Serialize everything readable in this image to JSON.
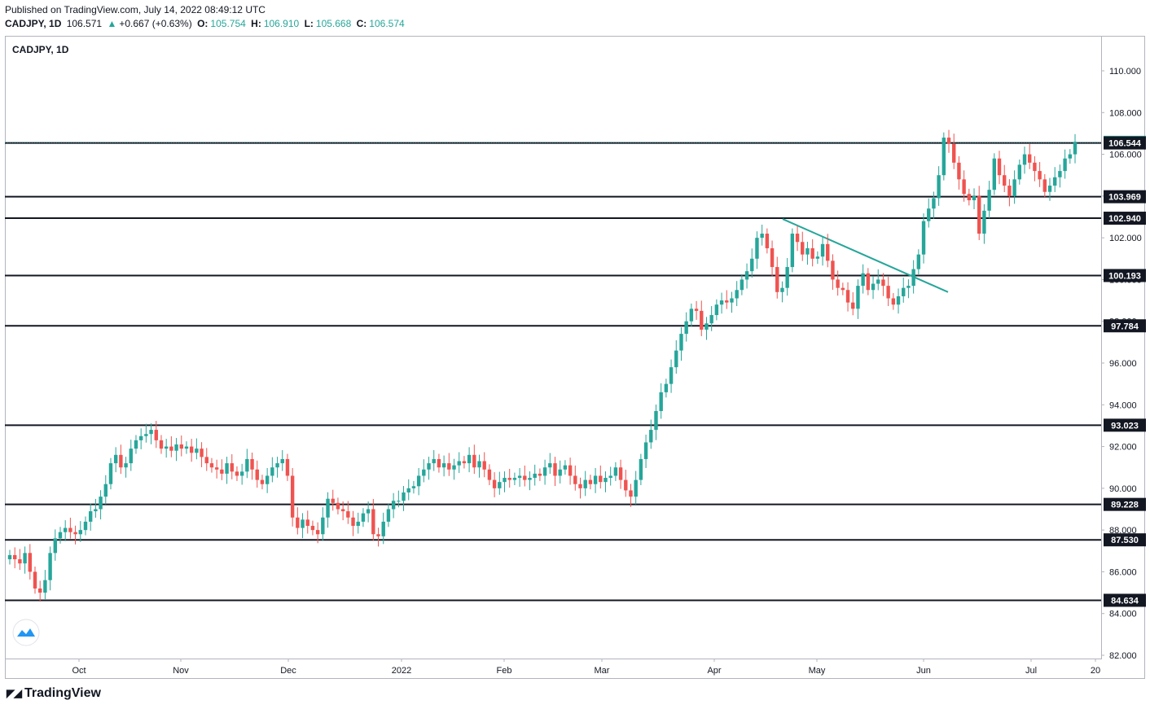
{
  "header": {
    "published": "Published on TradingView.com, July 14, 2022 08:49:12 UTC",
    "symbol": "CADJPY, 1D",
    "last": "106.571",
    "change": "+0.667 (+0.63%)",
    "open_label": "O:",
    "open": "105.754",
    "high_label": "H:",
    "high": "106.910",
    "low_label": "L:",
    "low": "105.668",
    "close_label": "C:",
    "close": "106.574"
  },
  "pane_title": "CADJPY, 1D",
  "footer_brand": "TradingView",
  "colors": {
    "up": "#26a69a",
    "down": "#ef5350",
    "line": "#131722",
    "trend": "#26a69a"
  },
  "chart_data": {
    "type": "candlestick",
    "symbol": "CADJPY",
    "timeframe": "1D",
    "ylim": [
      82,
      111
    ],
    "y_ticks": [
      "82.000",
      "84.000",
      "86.000",
      "88.000",
      "90.000",
      "92.000",
      "94.000",
      "96.000",
      "98.000",
      "100.000",
      "102.000",
      "104.000",
      "106.000",
      "108.000",
      "110.000"
    ],
    "x_ticks": [
      "Oct",
      "Nov",
      "Dec",
      "2022",
      "Feb",
      "Mar",
      "Apr",
      "May",
      "Jun",
      "Jul",
      "20"
    ],
    "current_price": "106.574",
    "levels": [
      "106.544",
      "103.969",
      "102.940",
      "100.193",
      "97.784",
      "93.023",
      "89.228",
      "87.530",
      "84.634"
    ],
    "trendline": {
      "from": [
        "2022-04-20",
        102.9
      ],
      "to": [
        "2022-06-10",
        99.4
      ]
    },
    "series_close_path": [
      86.8,
      86.6,
      86.4,
      86.9,
      86.0,
      85.2,
      85.0,
      85.6,
      86.9,
      87.6,
      87.9,
      88.1,
      87.9,
      87.8,
      88.0,
      88.4,
      88.9,
      89.0,
      89.6,
      90.2,
      91.2,
      91.6,
      91.0,
      91.2,
      91.9,
      92.3,
      92.5,
      92.6,
      92.8,
      92.3,
      91.9,
      92.0,
      91.8,
      92.1,
      91.9,
      92.0,
      91.7,
      91.9,
      91.5,
      91.2,
      91.0,
      90.9,
      90.7,
      91.2,
      90.8,
      90.6,
      90.8,
      91.4,
      90.9,
      90.4,
      90.2,
      90.6,
      91.0,
      91.2,
      91.4,
      90.6,
      88.6,
      88.1,
      88.5,
      88.2,
      88.0,
      87.8,
      88.6,
      89.5,
      89.3,
      89.0,
      88.9,
      88.6,
      88.2,
      88.4,
      88.8,
      89.0,
      87.8,
      87.7,
      88.4,
      89.0,
      89.4,
      89.4,
      89.8,
      90.0,
      90.1,
      90.6,
      90.9,
      91.2,
      91.4,
      91.0,
      91.2,
      90.9,
      91.1,
      91.3,
      91.2,
      91.6,
      91.0,
      91.3,
      90.9,
      90.4,
      90.0,
      90.3,
      90.5,
      90.4,
      90.5,
      90.6,
      90.4,
      90.5,
      90.7,
      90.6,
      91.0,
      91.2,
      90.6,
      90.9,
      91.1,
      90.6,
      90.2,
      90.0,
      90.4,
      90.2,
      90.6,
      90.3,
      90.5,
      90.6,
      91.0,
      90.4,
      89.9,
      89.6,
      90.4,
      91.4,
      92.2,
      92.8,
      93.7,
      94.6,
      95.0,
      95.8,
      96.6,
      97.4,
      98.0,
      98.6,
      98.5,
      97.6,
      97.9,
      98.3,
      98.8,
      99.0,
      98.9,
      99.1,
      99.5,
      100.0,
      100.4,
      101.0,
      102.0,
      102.2,
      101.5,
      100.6,
      99.4,
      99.6,
      100.6,
      102.2,
      101.8,
      101.2,
      101.5,
      101.0,
      101.1,
      101.7,
      100.9,
      100.0,
      99.6,
      99.5,
      98.9,
      98.6,
      99.7,
      100.3,
      99.5,
      99.8,
      100.0,
      99.7,
      99.1,
      98.8,
      99.2,
      99.6,
      99.7,
      100.5,
      101.2,
      102.8,
      103.4,
      103.9,
      105.0,
      106.8,
      106.5,
      105.6,
      104.8,
      104.1,
      103.8,
      104.0,
      102.2,
      103.3,
      104.3,
      105.8,
      105.0,
      104.5,
      104.0,
      104.8,
      105.5,
      106.0,
      105.6,
      105.2,
      104.8,
      104.2,
      104.5,
      104.9,
      105.2,
      105.8,
      106.0,
      106.6
    ]
  }
}
